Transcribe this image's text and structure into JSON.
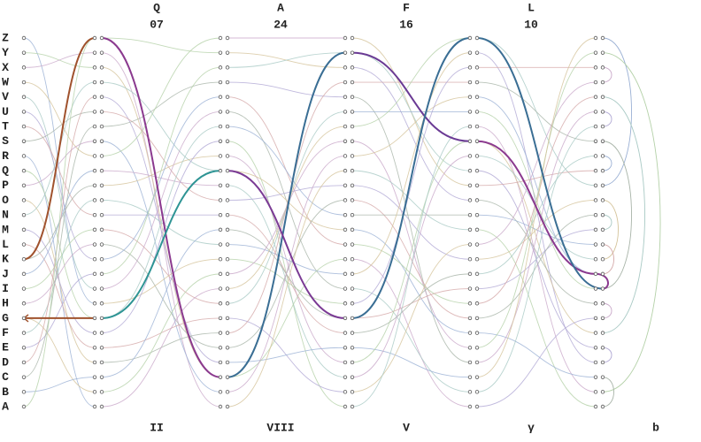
{
  "letters": [
    "Z",
    "Y",
    "X",
    "W",
    "V",
    "U",
    "T",
    "S",
    "R",
    "Q",
    "P",
    "O",
    "N",
    "M",
    "L",
    "K",
    "J",
    "I",
    "H",
    "G",
    "F",
    "E",
    "D",
    "C",
    "B",
    "A"
  ],
  "rotors": [
    {
      "letter": "Q",
      "position": "07"
    },
    {
      "letter": "A",
      "position": "24"
    },
    {
      "letter": "F",
      "position": "16"
    },
    {
      "letter": "L",
      "position": "10"
    }
  ],
  "components": [
    "II",
    "VIII",
    "V",
    "γ",
    "b"
  ]
}
